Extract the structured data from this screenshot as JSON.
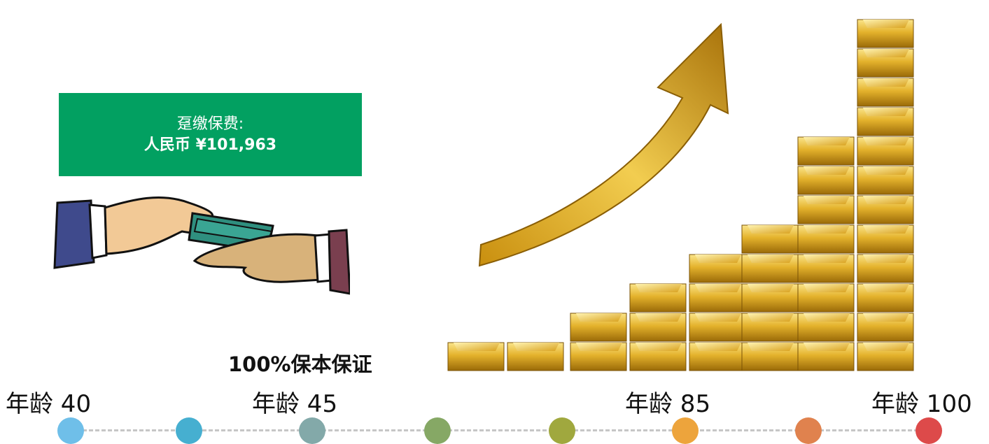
{
  "premium": {
    "label": "趸缴保费:",
    "amount": "人民币 ¥101,963",
    "color": "#02a061"
  },
  "guarantee": "100%保本保证",
  "timeline": {
    "ages": [
      {
        "label": "年龄 40"
      },
      {
        "label": "年龄 45"
      },
      {
        "label": "年龄 85"
      },
      {
        "label": "年龄 100"
      }
    ],
    "dot_colors": [
      "#6fbfe9",
      "#46afd0",
      "#83a9a9",
      "#86a865",
      "#a0a83e",
      "#eda43c",
      "#e0824e",
      "#dd4a4a"
    ]
  },
  "illustrations": {
    "hands": "hands-exchanging-money-illustration",
    "growth": "gold-bars-growth-arrow-illustration"
  }
}
